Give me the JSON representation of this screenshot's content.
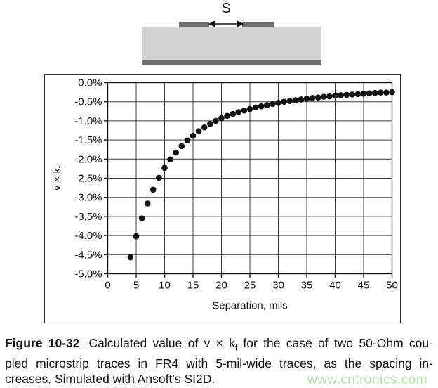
{
  "diagram": {
    "s_label": "S",
    "substrate_color": "#d2d2d2",
    "conductor_color": "#6e6e6e"
  },
  "chart_data": {
    "type": "scatter",
    "title": "",
    "xlabel": "Separation, mils",
    "ylabel": "v × k",
    "ylabel_sub": "f",
    "xlim": [
      0,
      50
    ],
    "ylim": [
      -5.0,
      0.0
    ],
    "x_ticks": [
      "0",
      "5",
      "10",
      "15",
      "20",
      "25",
      "30",
      "35",
      "40",
      "45",
      "50"
    ],
    "y_ticks": [
      "0.0%",
      "-0.5%",
      "-1.0%",
      "-1.5%",
      "-2.0%",
      "-2.5%",
      "-3.0%",
      "-3.5%",
      "-4.0%",
      "-4.5%",
      "-5.0%"
    ],
    "grid": true,
    "legend": "none",
    "marker": {
      "shape": "circle",
      "color": "#111111",
      "radius": 4.3
    },
    "points": [
      [
        4,
        -4.57
      ],
      [
        5,
        -4.02
      ],
      [
        6,
        -3.55
      ],
      [
        7,
        -3.16
      ],
      [
        8,
        -2.8
      ],
      [
        9,
        -2.49
      ],
      [
        10,
        -2.23
      ],
      [
        11,
        -2.01
      ],
      [
        12,
        -1.83
      ],
      [
        13,
        -1.66
      ],
      [
        14,
        -1.51
      ],
      [
        15,
        -1.39
      ],
      [
        16,
        -1.27
      ],
      [
        17,
        -1.17
      ],
      [
        18,
        -1.08
      ],
      [
        19,
        -1.0
      ],
      [
        20,
        -0.93
      ],
      [
        21,
        -0.87
      ],
      [
        22,
        -0.82
      ],
      [
        23,
        -0.77
      ],
      [
        24,
        -0.73
      ],
      [
        25,
        -0.69
      ],
      [
        26,
        -0.65
      ],
      [
        27,
        -0.62
      ],
      [
        28,
        -0.59
      ],
      [
        29,
        -0.56
      ],
      [
        30,
        -0.53
      ],
      [
        31,
        -0.5
      ],
      [
        32,
        -0.48
      ],
      [
        33,
        -0.46
      ],
      [
        34,
        -0.44
      ],
      [
        35,
        -0.42
      ],
      [
        36,
        -0.4
      ],
      [
        37,
        -0.39
      ],
      [
        38,
        -0.37
      ],
      [
        39,
        -0.36
      ],
      [
        40,
        -0.34
      ],
      [
        41,
        -0.33
      ],
      [
        42,
        -0.32
      ],
      [
        43,
        -0.31
      ],
      [
        44,
        -0.3
      ],
      [
        45,
        -0.29
      ],
      [
        46,
        -0.28
      ],
      [
        47,
        -0.27
      ],
      [
        48,
        -0.26
      ],
      [
        49,
        -0.26
      ],
      [
        50,
        -0.25
      ]
    ]
  },
  "caption": {
    "label": "Figure 10-32",
    "line1_pre": "Calculated value of v × k",
    "line1_sub": "f",
    "line1_post": " for the case of two 50-Ohm cou-",
    "line2": "pled microstrip traces in FR4 with 5-mil-wide traces, as the spacing in-",
    "line3": "creases. Simulated with Ansoft’s SI2D."
  },
  "watermark": {
    "text": "www.cntronics.com",
    "color": "#b7dfae"
  }
}
